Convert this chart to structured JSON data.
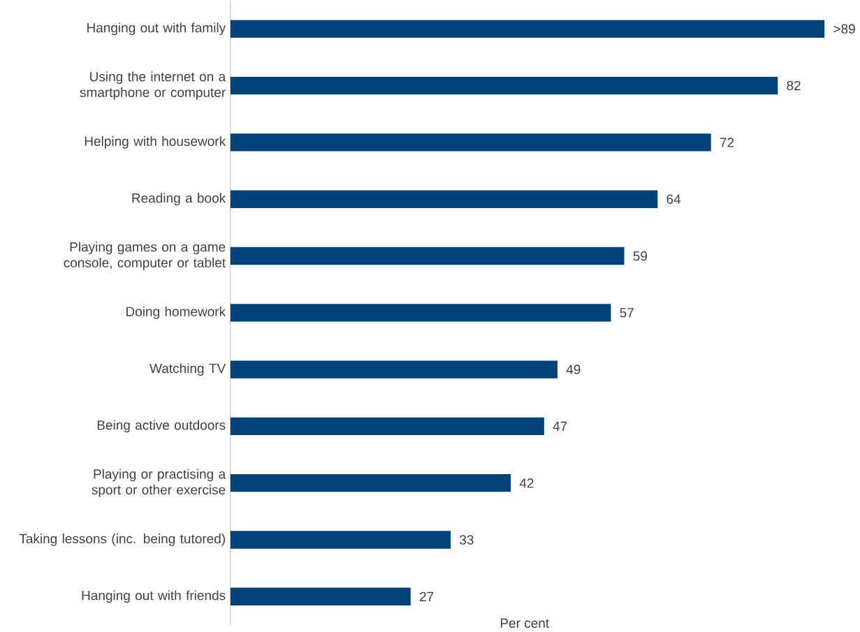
{
  "chart_data": {
    "type": "bar",
    "orientation": "horizontal",
    "xlabel": "Per cent",
    "color": "#00427a",
    "categories": [
      "Hanging out with family",
      "Using the internet on a smartphone or computer",
      "Helping with housework",
      "Reading a book",
      "Playing games on a game console, computer or tablet",
      "Doing homework",
      "Watching TV",
      "Being active outdoors",
      "Playing or practising a sport or other exercise",
      "Taking lessons (inc. being tutored)",
      "Hanging out with friends"
    ],
    "values": [
      89,
      82,
      72,
      64,
      59,
      57,
      49,
      47,
      42,
      33,
      27
    ],
    "value_labels": [
      ">89",
      "82",
      "72",
      "64",
      "59",
      "57",
      "49",
      "47",
      "42",
      "33",
      "27"
    ]
  }
}
